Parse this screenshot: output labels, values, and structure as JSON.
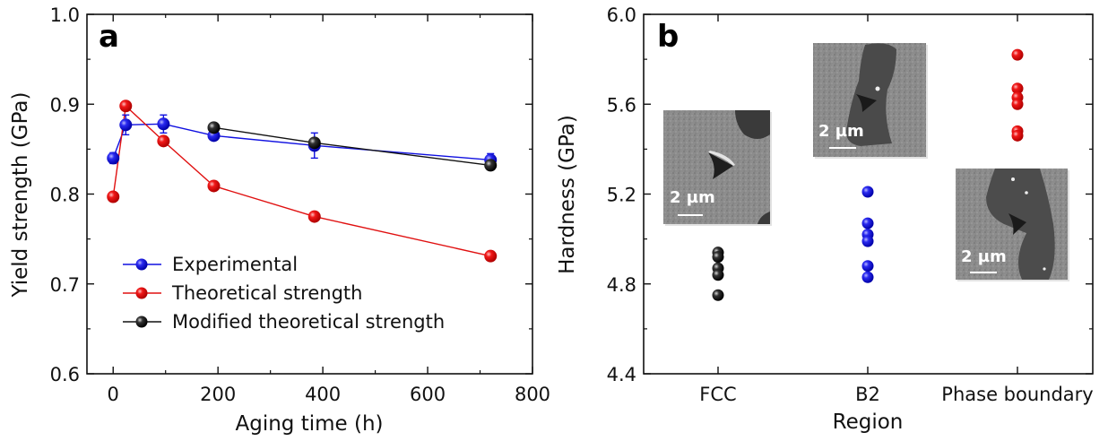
{
  "chart_data": [
    {
      "panel": "a",
      "type": "line",
      "title": "",
      "xlabel": "Aging time (h)",
      "ylabel": "Yield strength (GPa)",
      "xlim": [
        -50,
        800
      ],
      "ylim": [
        0.6,
        1.0
      ],
      "xticks": [
        "0",
        "200",
        "400",
        "600",
        "800"
      ],
      "xtick_values": [
        0,
        200,
        400,
        600,
        800
      ],
      "yticks": [
        "0.6",
        "0.7",
        "0.8",
        "0.9",
        "1.0"
      ],
      "ytick_values": [
        0.6,
        0.7,
        0.8,
        0.9,
        1.0
      ],
      "grid": false,
      "legend_position": "bottom-left",
      "series": [
        {
          "name": "Experimental",
          "color": "#1010e0",
          "x": [
            0,
            24,
            96,
            192,
            384,
            720
          ],
          "values": [
            0.84,
            0.877,
            0.878,
            0.865,
            0.854,
            0.838
          ],
          "errors": [
            0.006,
            0.011,
            0.01,
            0.005,
            0.014,
            0.007
          ]
        },
        {
          "name": "Theoretical strength",
          "color": "#e01010",
          "x": [
            0,
            24,
            96,
            192,
            384,
            720
          ],
          "values": [
            0.797,
            0.898,
            0.859,
            0.809,
            0.775,
            0.731
          ]
        },
        {
          "name": "Modified theoretical strength",
          "color": "#111111",
          "x": [
            192,
            384,
            720
          ],
          "values": [
            0.874,
            0.857,
            0.832
          ]
        }
      ]
    },
    {
      "panel": "b",
      "type": "scatter",
      "title": "",
      "xlabel": "Region",
      "ylabel": "Hardness (GPa)",
      "categories": [
        "FCC",
        "B2",
        "Phase boundary"
      ],
      "ylim": [
        4.4,
        6.0
      ],
      "yticks": [
        "4.4",
        "4.8",
        "5.2",
        "5.6",
        "6.0"
      ],
      "ytick_values": [
        4.4,
        4.8,
        5.2,
        5.6,
        6.0
      ],
      "grid": false,
      "series": [
        {
          "name": "FCC",
          "color": "#111111",
          "values": [
            4.94,
            4.92,
            4.87,
            4.84,
            4.75
          ]
        },
        {
          "name": "B2",
          "color": "#1010e0",
          "values": [
            5.21,
            5.07,
            5.02,
            4.99,
            4.88,
            4.83
          ]
        },
        {
          "name": "Phase boundary",
          "color": "#e01010",
          "values": [
            5.82,
            5.67,
            5.63,
            5.6,
            5.48,
            5.46
          ]
        }
      ],
      "insets": [
        {
          "region": "FCC",
          "scale_bar": "2 µm"
        },
        {
          "region": "B2",
          "scale_bar": "2 µm"
        },
        {
          "region": "Phase boundary",
          "scale_bar": "2 µm"
        }
      ]
    }
  ],
  "panels": {
    "a_label": "a",
    "b_label": "b"
  }
}
